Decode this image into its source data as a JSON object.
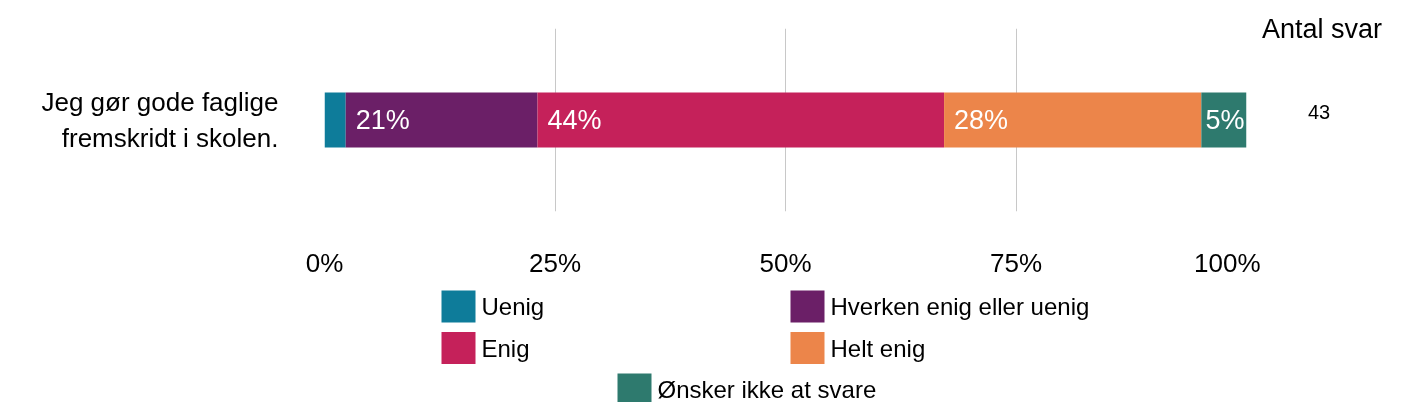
{
  "chart_data": {
    "type": "bar",
    "orientation": "horizontal",
    "stacked": true,
    "categories": [
      "Jeg gør gode faglige fremskridt i skolen."
    ],
    "series": [
      {
        "name": "Uenig",
        "color": "#0e7c9a",
        "values": [
          2.3
        ],
        "value_labels": [
          null
        ]
      },
      {
        "name": "Hverken enig eller uenig",
        "color": "#6b1f67",
        "values": [
          20.8
        ],
        "value_labels": [
          "21%"
        ]
      },
      {
        "name": "Enig",
        "color": "#c5215a",
        "values": [
          44.1
        ],
        "value_labels": [
          "44%"
        ]
      },
      {
        "name": "Helt enig",
        "color": "#ec854a",
        "values": [
          27.9
        ],
        "value_labels": [
          "28%"
        ]
      },
      {
        "name": "Ønsker ikke at svare",
        "color": "#2e7a6e",
        "values": [
          4.9
        ],
        "value_labels": [
          "5%"
        ]
      }
    ],
    "xlim": [
      0,
      100
    ],
    "xticks": [
      {
        "value": 0,
        "label": "0%"
      },
      {
        "value": 25,
        "label": "25%"
      },
      {
        "value": 50,
        "label": "50%"
      },
      {
        "value": 75,
        "label": "75%"
      },
      {
        "value": 100,
        "label": "100%"
      }
    ],
    "grid": "x",
    "legend": "bottom",
    "annotations": [
      "Antal svar",
      "43"
    ]
  }
}
